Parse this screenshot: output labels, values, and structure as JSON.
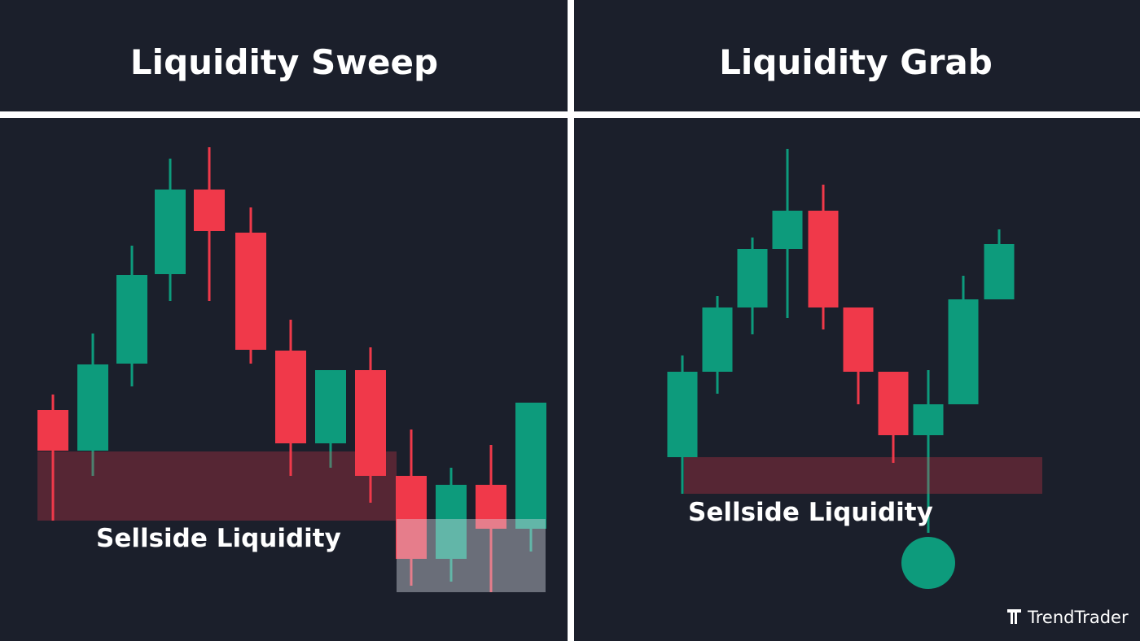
{
  "panels": [
    {
      "title": "Liquidity Sweep",
      "zone_label": "Sellside Liquidity"
    },
    {
      "title": "Liquidity Grab",
      "zone_label": "Sellside Liquidity"
    }
  ],
  "brand": "TrendTrader"
}
